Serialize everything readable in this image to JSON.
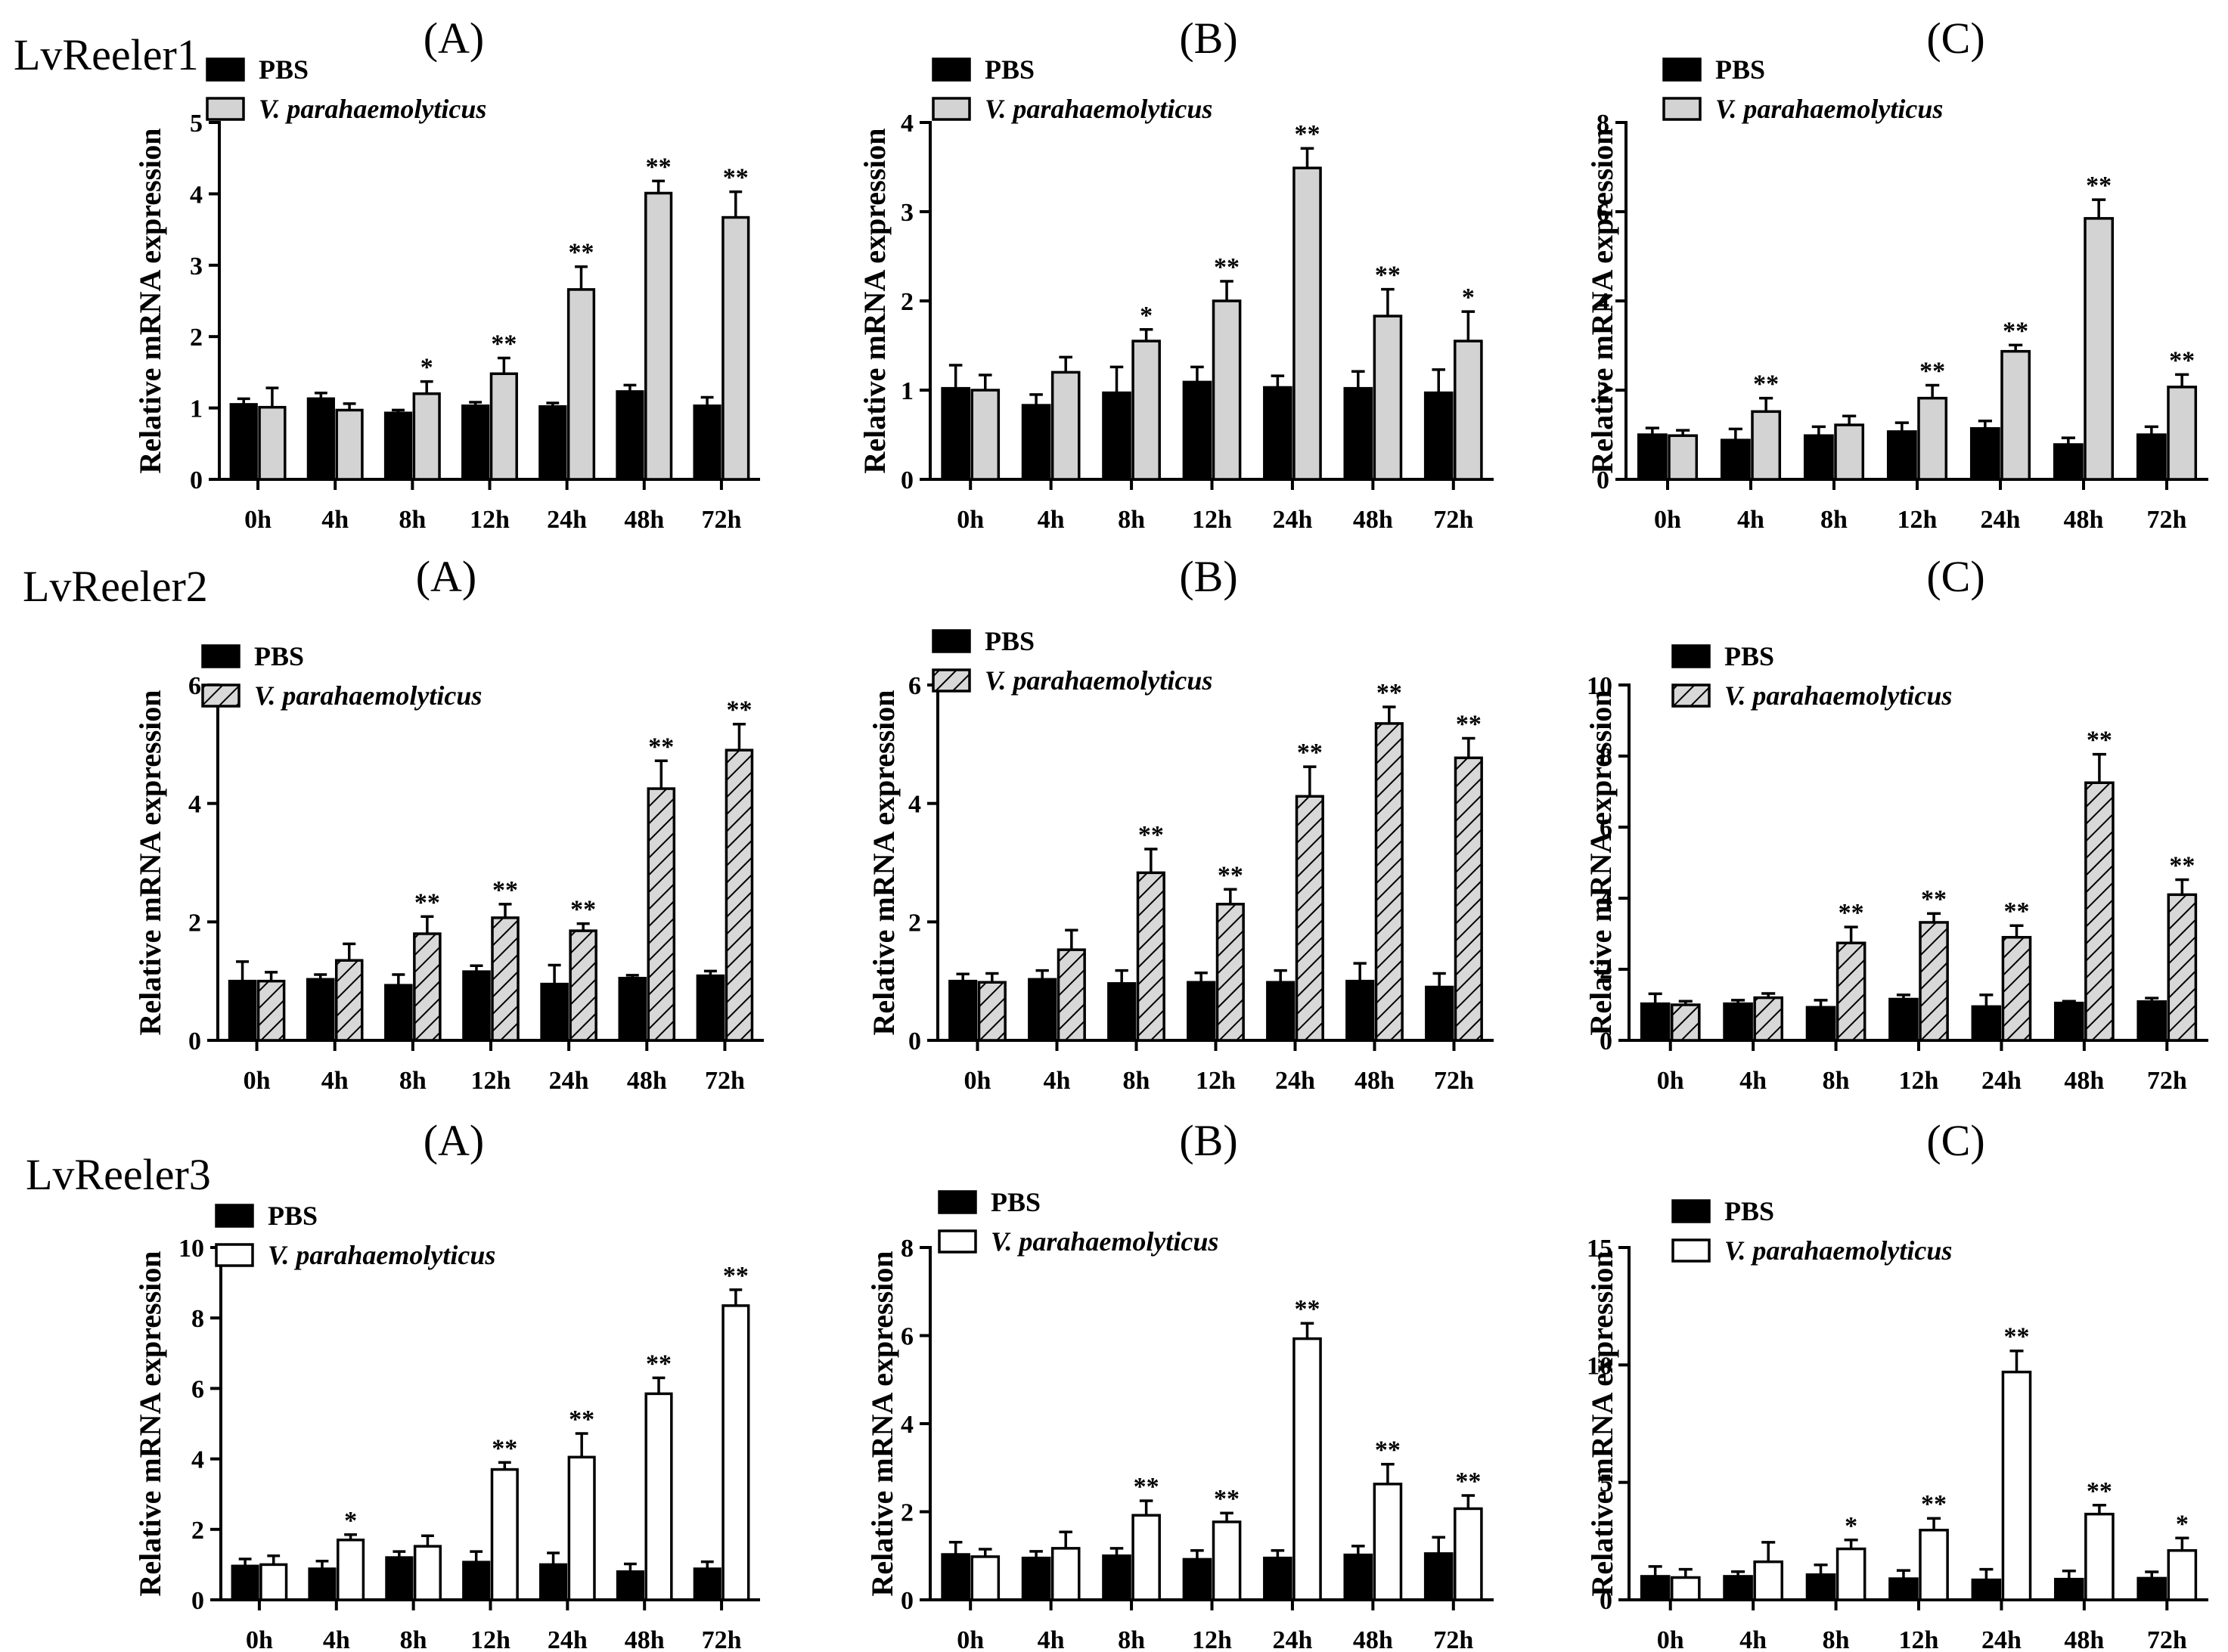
{
  "figure": {
    "row_labels": [
      "LvReeler1",
      "LvReeler2",
      "LvReeler3"
    ]
  },
  "colors": {
    "pbs": "#000000",
    "vp_row1": "#d3d3d3",
    "vp_row2": "#d8d8d8",
    "vp_row3": "#ffffff",
    "axis": "#000000"
  },
  "chart_data": [
    {
      "type": "bar",
      "row": 0,
      "col": 0,
      "panel_label": "(A)",
      "ylabel": "Relative mRNA expression",
      "ylim": [
        0,
        5
      ],
      "yticks": [
        0,
        1,
        2,
        3,
        4,
        5
      ],
      "categories": [
        "0h",
        "4h",
        "8h",
        "12h",
        "24h",
        "48h",
        "72h"
      ],
      "fill": "solid",
      "series": [
        {
          "name": "PBS",
          "values": [
            1.05,
            1.13,
            0.93,
            1.03,
            1.02,
            1.23,
            1.03
          ],
          "errors": [
            0.08,
            0.08,
            0.04,
            0.05,
            0.05,
            0.09,
            0.12
          ],
          "sig": [
            "",
            "",
            "",
            "",
            "",
            "",
            ""
          ]
        },
        {
          "name": "V. parahaemolyticus",
          "values": [
            1.01,
            0.97,
            1.2,
            1.48,
            2.66,
            4.01,
            3.67
          ],
          "errors": [
            0.27,
            0.09,
            0.17,
            0.22,
            0.32,
            0.17,
            0.36
          ],
          "sig": [
            "",
            "",
            "*",
            "**",
            "**",
            "**",
            "**"
          ]
        }
      ]
    },
    {
      "type": "bar",
      "row": 0,
      "col": 1,
      "panel_label": "(B)",
      "ylabel": "Relative mRNA expression",
      "ylim": [
        0,
        4
      ],
      "yticks": [
        0,
        1,
        2,
        3,
        4
      ],
      "categories": [
        "0h",
        "4h",
        "8h",
        "12h",
        "24h",
        "48h",
        "72h"
      ],
      "fill": "solid",
      "series": [
        {
          "name": "PBS",
          "values": [
            1.02,
            0.83,
            0.97,
            1.09,
            1.03,
            1.02,
            0.97
          ],
          "errors": [
            0.26,
            0.12,
            0.29,
            0.17,
            0.13,
            0.19,
            0.26
          ],
          "sig": [
            "",
            "",
            "",
            "",
            "",
            "",
            ""
          ]
        },
        {
          "name": "V. parahaemolyticus",
          "values": [
            1.0,
            1.2,
            1.55,
            2.0,
            3.49,
            1.83,
            1.55
          ],
          "errors": [
            0.17,
            0.17,
            0.13,
            0.22,
            0.22,
            0.3,
            0.33
          ],
          "sig": [
            "",
            "",
            "*",
            "**",
            "**",
            "**",
            "*"
          ]
        }
      ]
    },
    {
      "type": "bar",
      "row": 0,
      "col": 2,
      "panel_label": "(C)",
      "ylabel": "Relative mRNA expression",
      "ylim": [
        0,
        8
      ],
      "yticks": [
        0,
        2,
        4,
        6,
        8
      ],
      "categories": [
        "0h",
        "4h",
        "8h",
        "12h",
        "24h",
        "48h",
        "72h"
      ],
      "fill": "solid",
      "series": [
        {
          "name": "PBS",
          "values": [
            1.0,
            0.88,
            0.98,
            1.07,
            1.14,
            0.78,
            1.0
          ],
          "errors": [
            0.15,
            0.25,
            0.2,
            0.2,
            0.17,
            0.15,
            0.18
          ],
          "sig": [
            "",
            "",
            "",
            "",
            "",
            "",
            ""
          ]
        },
        {
          "name": "V. parahaemolyticus",
          "values": [
            0.98,
            1.52,
            1.22,
            1.82,
            2.87,
            5.85,
            2.07
          ],
          "errors": [
            0.12,
            0.3,
            0.2,
            0.29,
            0.14,
            0.42,
            0.28
          ],
          "sig": [
            "",
            "**",
            "",
            "**",
            "**",
            "**",
            "**"
          ]
        }
      ]
    },
    {
      "type": "bar",
      "row": 1,
      "col": 0,
      "panel_label": "(A)",
      "ylabel": "Relative mRNA expression",
      "ylim": [
        0,
        6
      ],
      "yticks": [
        0,
        2,
        4,
        6
      ],
      "categories": [
        "0h",
        "4h",
        "8h",
        "12h",
        "24h",
        "48h",
        "72h"
      ],
      "fill": "hatched",
      "series": [
        {
          "name": "PBS",
          "values": [
            1.0,
            1.03,
            0.93,
            1.16,
            0.95,
            1.05,
            1.09
          ],
          "errors": [
            0.33,
            0.08,
            0.18,
            0.1,
            0.32,
            0.05,
            0.08
          ],
          "sig": [
            "",
            "",
            "",
            "",
            "",
            "",
            ""
          ]
        },
        {
          "name": "V. parahaemolyticus",
          "values": [
            1.0,
            1.35,
            1.8,
            2.07,
            1.85,
            4.25,
            4.9
          ],
          "errors": [
            0.15,
            0.28,
            0.29,
            0.23,
            0.12,
            0.47,
            0.44
          ],
          "sig": [
            "",
            "",
            "**",
            "**",
            "**",
            "**",
            "**"
          ]
        }
      ]
    },
    {
      "type": "bar",
      "row": 1,
      "col": 1,
      "panel_label": "(B)",
      "ylabel": "Relative mRNA expression",
      "ylim": [
        0,
        6
      ],
      "yticks": [
        0,
        2,
        4,
        6
      ],
      "categories": [
        "0h",
        "4h",
        "8h",
        "12h",
        "24h",
        "48h",
        "72h"
      ],
      "fill": "hatched",
      "series": [
        {
          "name": "PBS",
          "values": [
            1.0,
            1.03,
            0.96,
            0.98,
            0.98,
            1.0,
            0.9
          ],
          "errors": [
            0.12,
            0.15,
            0.22,
            0.16,
            0.2,
            0.3,
            0.23
          ],
          "sig": [
            "",
            "",
            "",
            "",
            "",
            "",
            ""
          ]
        },
        {
          "name": "V. parahaemolyticus",
          "values": [
            0.98,
            1.53,
            2.83,
            2.3,
            4.12,
            5.35,
            4.77
          ],
          "errors": [
            0.15,
            0.33,
            0.4,
            0.25,
            0.5,
            0.28,
            0.33
          ],
          "sig": [
            "",
            "",
            "**",
            "**",
            "**",
            "**",
            "**"
          ]
        }
      ]
    },
    {
      "type": "bar",
      "row": 1,
      "col": 2,
      "panel_label": "(C)",
      "ylabel": "Relative mRNA expression",
      "ylim": [
        0,
        10
      ],
      "yticks": [
        0,
        2,
        4,
        6,
        8,
        10
      ],
      "categories": [
        "0h",
        "4h",
        "8h",
        "12h",
        "24h",
        "48h",
        "72h"
      ],
      "fill": "hatched",
      "series": [
        {
          "name": "PBS",
          "values": [
            1.03,
            1.03,
            0.93,
            1.16,
            0.95,
            1.05,
            1.09
          ],
          "errors": [
            0.28,
            0.1,
            0.2,
            0.12,
            0.33,
            0.05,
            0.1
          ],
          "sig": [
            "",
            "",
            "",
            "",
            "",
            "",
            ""
          ]
        },
        {
          "name": "V. parahaemolyticus",
          "values": [
            1.0,
            1.2,
            2.74,
            3.32,
            2.9,
            7.25,
            4.1
          ],
          "errors": [
            0.1,
            0.12,
            0.45,
            0.25,
            0.33,
            0.8,
            0.42
          ],
          "sig": [
            "",
            "",
            "**",
            "**",
            "**",
            "**",
            "**"
          ]
        }
      ]
    },
    {
      "type": "bar",
      "row": 2,
      "col": 0,
      "panel_label": "(A)",
      "ylabel": "Relative mRNA expression",
      "ylim": [
        0,
        10
      ],
      "yticks": [
        0,
        2,
        4,
        6,
        8,
        10
      ],
      "categories": [
        "0h",
        "4h",
        "8h",
        "12h",
        "24h",
        "48h",
        "72h"
      ],
      "fill": "open",
      "series": [
        {
          "name": "PBS",
          "values": [
            0.96,
            0.88,
            1.2,
            1.07,
            1.0,
            0.8,
            0.88
          ],
          "errors": [
            0.2,
            0.22,
            0.17,
            0.3,
            0.33,
            0.22,
            0.2
          ],
          "sig": [
            "",
            "",
            "",
            "",
            "",
            "",
            ""
          ]
        },
        {
          "name": "V. parahaemolyticus",
          "values": [
            1.0,
            1.7,
            1.52,
            3.7,
            4.05,
            5.85,
            8.35
          ],
          "errors": [
            0.25,
            0.15,
            0.3,
            0.2,
            0.67,
            0.45,
            0.45
          ],
          "sig": [
            "",
            "*",
            "",
            "**",
            "**",
            "**",
            "**"
          ]
        }
      ]
    },
    {
      "type": "bar",
      "row": 2,
      "col": 1,
      "panel_label": "(B)",
      "ylabel": "Relative mRNA expression",
      "ylim": [
        0,
        8
      ],
      "yticks": [
        0,
        2,
        4,
        6,
        8
      ],
      "categories": [
        "0h",
        "4h",
        "8h",
        "12h",
        "24h",
        "48h",
        "72h"
      ],
      "fill": "open",
      "series": [
        {
          "name": "PBS",
          "values": [
            1.03,
            0.95,
            1.0,
            0.92,
            0.95,
            1.02,
            1.05
          ],
          "errors": [
            0.28,
            0.15,
            0.17,
            0.2,
            0.17,
            0.2,
            0.37
          ],
          "sig": [
            "",
            "",
            "",
            "",
            "",
            "",
            ""
          ]
        },
        {
          "name": "V. parahaemolyticus",
          "values": [
            0.98,
            1.17,
            1.92,
            1.77,
            5.93,
            2.63,
            2.07
          ],
          "errors": [
            0.17,
            0.37,
            0.33,
            0.2,
            0.35,
            0.45,
            0.3
          ],
          "sig": [
            "",
            "",
            "**",
            "**",
            "**",
            "**",
            "**"
          ]
        }
      ]
    },
    {
      "type": "bar",
      "row": 2,
      "col": 2,
      "panel_label": "(C)",
      "ylabel": "Relative mRNA expression",
      "ylim": [
        0,
        15
      ],
      "yticks": [
        0,
        5,
        10,
        15
      ],
      "categories": [
        "0h",
        "4h",
        "8h",
        "12h",
        "24h",
        "48h",
        "72h"
      ],
      "fill": "open",
      "series": [
        {
          "name": "PBS",
          "values": [
            1.0,
            1.0,
            1.07,
            0.9,
            0.85,
            0.88,
            0.92
          ],
          "errors": [
            0.42,
            0.2,
            0.42,
            0.35,
            0.45,
            0.35,
            0.27
          ],
          "sig": [
            "",
            "",
            "",
            "",
            "",
            "",
            ""
          ]
        },
        {
          "name": "V. parahaemolyticus",
          "values": [
            0.95,
            1.62,
            2.17,
            2.97,
            9.7,
            3.65,
            2.1
          ],
          "errors": [
            0.35,
            0.83,
            0.38,
            0.5,
            0.9,
            0.38,
            0.53
          ],
          "sig": [
            "",
            "",
            "*",
            "**",
            "**",
            "**",
            "*"
          ]
        }
      ]
    }
  ]
}
